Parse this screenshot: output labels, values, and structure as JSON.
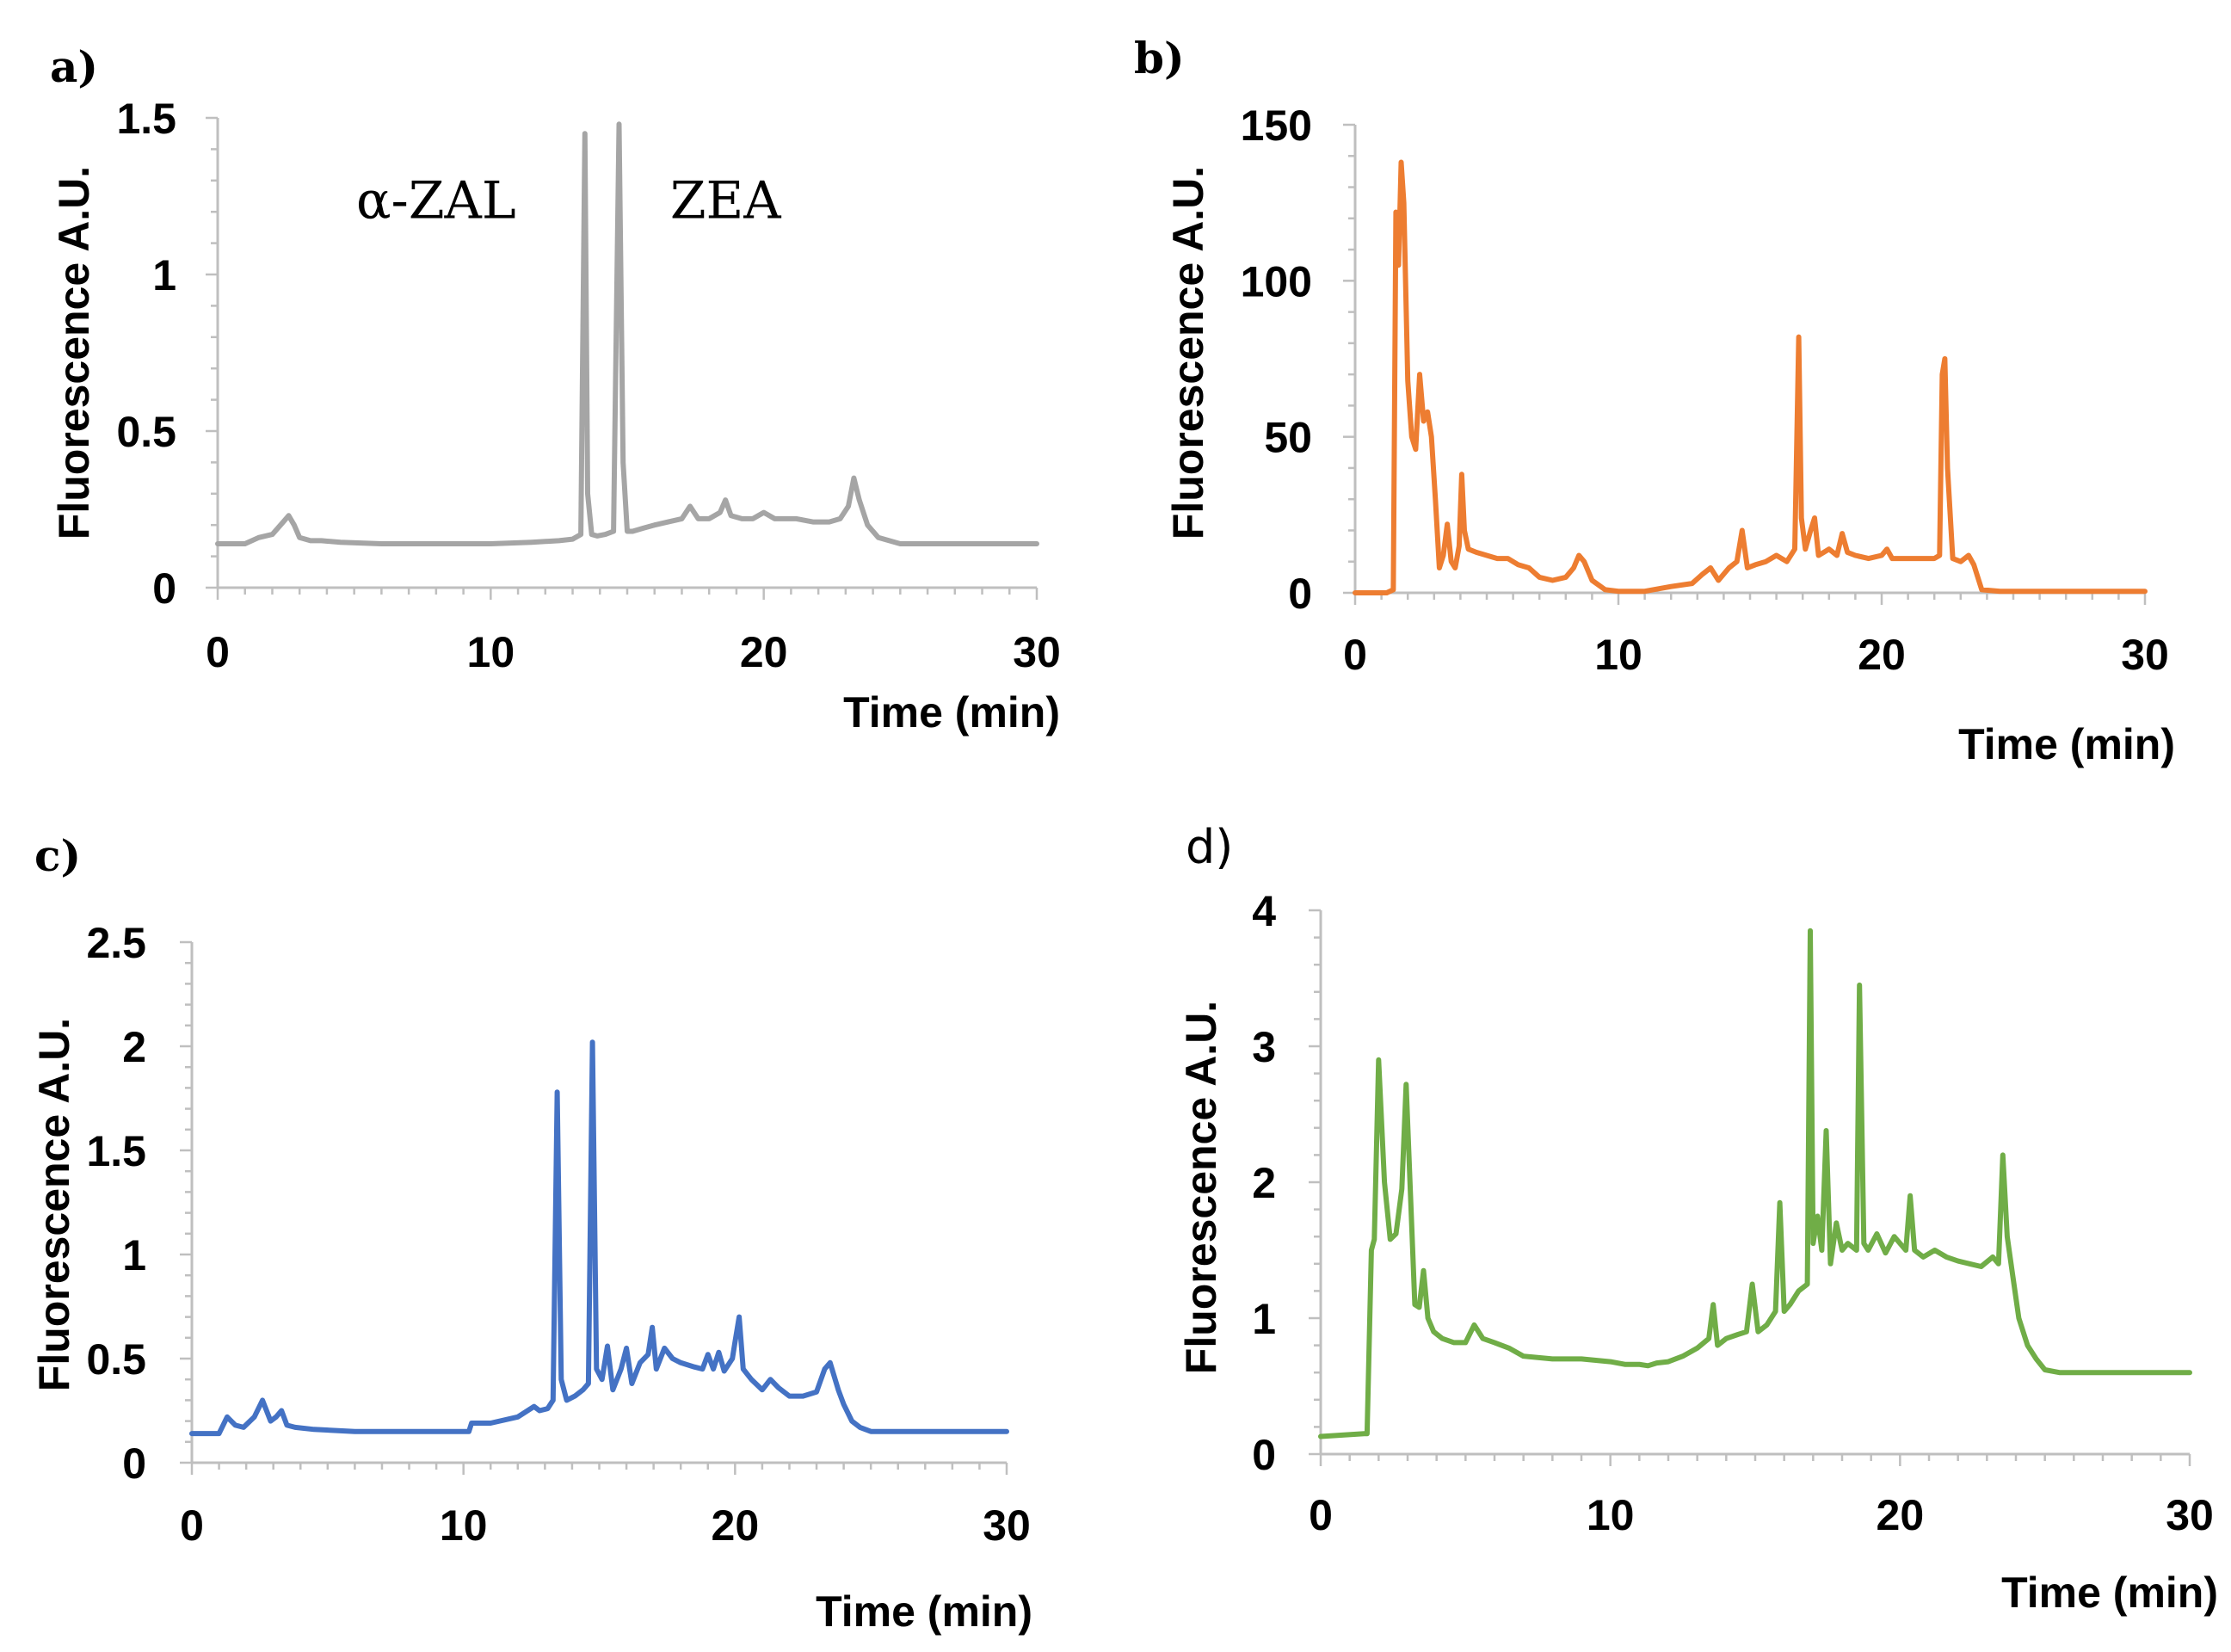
{
  "chart_data": [
    {
      "type": "line",
      "panel_label": "a)",
      "xlabel": "Time (min)",
      "ylabel": "Fluorescence A.U.",
      "xlim": [
        0,
        30
      ],
      "ylim": [
        0,
        1.5
      ],
      "x_ticks": [
        "0",
        "10",
        "20",
        "30"
      ],
      "y_ticks": [
        "0",
        "0.5",
        "1",
        "1.5"
      ],
      "annotations": [
        {
          "text": "α-ZAL",
          "x": 8.0,
          "y": 1.18
        },
        {
          "text": "ZEA",
          "x": 18.6,
          "y": 1.18
        }
      ],
      "series": [
        {
          "color": "#a5a5a5",
          "x": [
            0,
            1.0,
            1.5,
            2.0,
            2.4,
            2.6,
            2.8,
            3.0,
            3.4,
            3.8,
            4.5,
            6,
            8,
            10,
            11.5,
            12.5,
            13.0,
            13.3,
            13.45,
            13.55,
            13.7,
            13.9,
            14.2,
            14.5,
            14.7,
            14.85,
            15.0,
            15.2,
            15.6,
            16.0,
            16.5,
            17.0,
            17.3,
            17.6,
            18.0,
            18.4,
            18.6,
            18.8,
            19.2,
            19.6,
            20.0,
            20.4,
            20.8,
            21.2,
            21.8,
            22.4,
            22.8,
            23.1,
            23.3,
            23.5,
            23.8,
            24.2,
            24.6,
            25.0,
            26,
            28,
            30
          ],
          "y": [
            0.14,
            0.14,
            0.16,
            0.17,
            0.21,
            0.23,
            0.2,
            0.16,
            0.15,
            0.15,
            0.145,
            0.14,
            0.14,
            0.14,
            0.145,
            0.15,
            0.155,
            0.17,
            1.45,
            0.3,
            0.17,
            0.165,
            0.17,
            0.18,
            1.48,
            0.4,
            0.18,
            0.18,
            0.19,
            0.2,
            0.21,
            0.22,
            0.26,
            0.22,
            0.22,
            0.24,
            0.28,
            0.23,
            0.22,
            0.22,
            0.24,
            0.22,
            0.22,
            0.22,
            0.21,
            0.21,
            0.22,
            0.26,
            0.35,
            0.28,
            0.2,
            0.16,
            0.15,
            0.14,
            0.14,
            0.14,
            0.14
          ]
        }
      ]
    },
    {
      "type": "line",
      "panel_label": "b)",
      "xlabel": "Time (min)",
      "ylabel": "Fluorescence  A.U.",
      "xlim": [
        0,
        30
      ],
      "ylim": [
        0,
        150
      ],
      "x_ticks": [
        "0",
        "10",
        "20",
        "30"
      ],
      "y_ticks": [
        "0",
        "50",
        "100",
        "150"
      ],
      "series": [
        {
          "color": "#ed7d31",
          "x": [
            0,
            1.2,
            1.45,
            1.55,
            1.65,
            1.75,
            1.85,
            2.0,
            2.15,
            2.3,
            2.45,
            2.6,
            2.75,
            2.9,
            3.05,
            3.2,
            3.35,
            3.5,
            3.65,
            3.8,
            3.95,
            4.05,
            4.15,
            4.3,
            4.6,
            5.0,
            5.4,
            5.8,
            6.2,
            6.6,
            7.0,
            7.5,
            8.0,
            8.3,
            8.5,
            8.7,
            9.0,
            9.5,
            10.0,
            11.0,
            12.0,
            12.8,
            13.2,
            13.5,
            13.8,
            14.2,
            14.5,
            14.7,
            14.9,
            15.2,
            15.6,
            16.0,
            16.4,
            16.7,
            16.85,
            16.95,
            17.1,
            17.3,
            17.45,
            17.6,
            17.8,
            18.0,
            18.3,
            18.5,
            18.7,
            19.0,
            19.5,
            20.0,
            20.2,
            20.4,
            21.0,
            21.6,
            22.0,
            22.2,
            22.3,
            22.4,
            22.5,
            22.7,
            23.0,
            23.3,
            23.5,
            23.8,
            24.5,
            26,
            28,
            30
          ],
          "y": [
            0,
            0,
            1,
            122,
            105,
            138,
            125,
            68,
            50,
            46,
            70,
            55,
            58,
            50,
            30,
            8,
            12,
            22,
            10,
            8,
            15,
            38,
            20,
            14,
            13,
            12,
            11,
            11,
            9,
            8,
            5,
            4,
            5,
            8,
            12,
            10,
            4,
            1,
            0.5,
            0.5,
            2,
            3,
            6,
            8,
            4,
            8,
            10,
            20,
            8,
            9,
            10,
            12,
            10,
            14,
            82,
            24,
            14,
            20,
            24,
            12,
            13,
            14,
            12,
            19,
            13,
            12,
            11,
            12,
            14,
            11,
            11,
            11,
            11,
            12,
            70,
            75,
            40,
            11,
            10,
            12,
            9,
            1,
            0.5,
            0.5,
            0.5,
            0.5
          ]
        }
      ]
    },
    {
      "type": "line",
      "panel_label": "c)",
      "xlabel": "Time (min)",
      "ylabel": "Fluorescence  A.U.",
      "xlim": [
        0,
        30
      ],
      "ylim": [
        0,
        2.5
      ],
      "x_ticks": [
        "0",
        "10",
        "20",
        "30"
      ],
      "y_ticks": [
        "0",
        "0.5",
        "1",
        "1.5",
        "2",
        "2.5"
      ],
      "series": [
        {
          "color": "#4472c4",
          "x": [
            0,
            1.0,
            1.3,
            1.6,
            1.9,
            2.3,
            2.6,
            2.75,
            2.9,
            3.1,
            3.3,
            3.5,
            3.8,
            4.5,
            6,
            8,
            10.2,
            10.3,
            11,
            12,
            12.6,
            12.8,
            13.1,
            13.3,
            13.45,
            13.6,
            13.8,
            14.1,
            14.4,
            14.6,
            14.75,
            14.9,
            15.1,
            15.3,
            15.5,
            15.8,
            16.0,
            16.2,
            16.5,
            16.8,
            16.95,
            17.1,
            17.4,
            17.7,
            18.0,
            18.5,
            18.8,
            19.0,
            19.2,
            19.4,
            19.6,
            19.9,
            20.0,
            20.15,
            20.3,
            20.6,
            21.0,
            21.3,
            21.6,
            22.0,
            22.5,
            23.0,
            23.3,
            23.5,
            23.8,
            24.0,
            24.3,
            24.6,
            25.0,
            25.5,
            26,
            28,
            30
          ],
          "y": [
            0.14,
            0.14,
            0.22,
            0.18,
            0.17,
            0.22,
            0.3,
            0.25,
            0.2,
            0.22,
            0.25,
            0.18,
            0.17,
            0.16,
            0.15,
            0.15,
            0.15,
            0.19,
            0.19,
            0.22,
            0.27,
            0.25,
            0.26,
            0.3,
            1.78,
            0.4,
            0.3,
            0.32,
            0.35,
            0.38,
            2.02,
            0.45,
            0.4,
            0.56,
            0.35,
            0.45,
            0.55,
            0.38,
            0.48,
            0.52,
            0.65,
            0.45,
            0.55,
            0.5,
            0.48,
            0.46,
            0.45,
            0.52,
            0.45,
            0.53,
            0.44,
            0.5,
            0.58,
            0.7,
            0.45,
            0.4,
            0.35,
            0.4,
            0.36,
            0.32,
            0.32,
            0.34,
            0.45,
            0.48,
            0.35,
            0.28,
            0.2,
            0.17,
            0.15,
            0.15,
            0.15,
            0.15,
            0.15
          ]
        }
      ]
    },
    {
      "type": "line",
      "panel_label": "d)",
      "xlabel": "Time (min)",
      "ylabel": "Fluorescence  A.U.",
      "xlim": [
        0,
        30
      ],
      "ylim": [
        0,
        4
      ],
      "x_ticks": [
        "0",
        "10",
        "20",
        "30"
      ],
      "y_ticks": [
        "0",
        "1",
        "2",
        "3",
        "4"
      ],
      "series": [
        {
          "color": "#70ad47",
          "x": [
            0,
            1.5,
            1.6,
            1.75,
            1.85,
            2.0,
            2.2,
            2.4,
            2.6,
            2.8,
            2.95,
            3.1,
            3.25,
            3.4,
            3.55,
            3.7,
            3.9,
            4.2,
            4.6,
            5.0,
            5.3,
            5.6,
            6.0,
            6.5,
            7.0,
            8.0,
            9.0,
            10.0,
            10.5,
            11.0,
            11.3,
            11.6,
            12.0,
            12.5,
            13.0,
            13.4,
            13.55,
            13.7,
            14.0,
            14.4,
            14.7,
            14.9,
            15.1,
            15.4,
            15.7,
            15.85,
            16.0,
            16.2,
            16.5,
            16.8,
            16.9,
            17.0,
            17.15,
            17.3,
            17.45,
            17.6,
            17.8,
            18.0,
            18.2,
            18.5,
            18.6,
            18.75,
            18.9,
            19.2,
            19.5,
            19.8,
            20.0,
            20.2,
            20.35,
            20.5,
            20.8,
            21.2,
            21.6,
            22.0,
            22.4,
            22.8,
            23.2,
            23.4,
            23.55,
            23.7,
            23.9,
            24.1,
            24.4,
            24.7,
            25.0,
            25.5,
            26,
            27,
            28,
            30
          ],
          "y": [
            0.13,
            0.15,
            0.15,
            1.5,
            1.58,
            2.9,
            2.0,
            1.58,
            1.62,
            1.95,
            2.72,
            1.9,
            1.1,
            1.08,
            1.35,
            1.0,
            0.9,
            0.85,
            0.82,
            0.82,
            0.95,
            0.85,
            0.82,
            0.78,
            0.72,
            0.7,
            0.7,
            0.68,
            0.66,
            0.66,
            0.65,
            0.67,
            0.68,
            0.72,
            0.78,
            0.85,
            1.1,
            0.8,
            0.85,
            0.88,
            0.9,
            1.25,
            0.9,
            0.95,
            1.05,
            1.85,
            1.05,
            1.1,
            1.2,
            1.25,
            3.85,
            1.55,
            1.75,
            1.5,
            2.38,
            1.4,
            1.7,
            1.5,
            1.55,
            1.5,
            3.45,
            1.55,
            1.5,
            1.62,
            1.48,
            1.6,
            1.55,
            1.5,
            1.9,
            1.5,
            1.45,
            1.5,
            1.45,
            1.42,
            1.4,
            1.38,
            1.45,
            1.4,
            2.2,
            1.6,
            1.3,
            1.0,
            0.8,
            0.7,
            0.62,
            0.6,
            0.6,
            0.6,
            0.6,
            0.6
          ]
        }
      ]
    }
  ]
}
